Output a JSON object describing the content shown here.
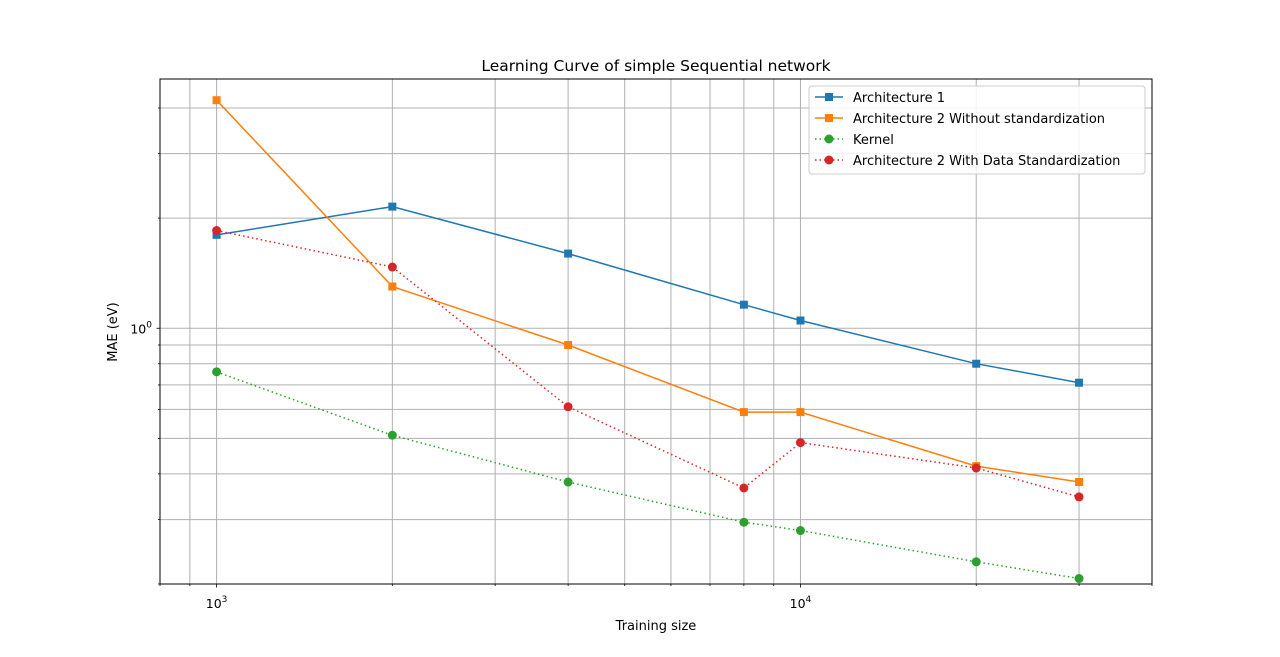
{
  "chart_data": {
    "type": "line",
    "title": "Learning Curve of simple Sequential network",
    "xlabel": "Training size",
    "ylabel": "MAE (eV)",
    "xscale": "log",
    "yscale": "log",
    "xlim": [
      800,
      40000
    ],
    "ylim": [
      0.2,
      4.8
    ],
    "x_ticks": [
      {
        "value": 1000,
        "base": "10",
        "exp": "3"
      },
      {
        "value": 10000,
        "base": "10",
        "exp": "4"
      }
    ],
    "y_ticks": [
      {
        "value": 1,
        "base": "10",
        "exp": "0"
      }
    ],
    "grid": true,
    "legend_position": "top-right",
    "x": [
      1000,
      2000,
      4000,
      8000,
      10000,
      20000,
      30000
    ],
    "series": [
      {
        "name": "Architecture 1",
        "color": "#1f77b4",
        "marker": "square",
        "linestyle": "solid",
        "values": [
          1.8,
          2.15,
          1.6,
          1.16,
          1.05,
          0.8,
          0.71
        ]
      },
      {
        "name": "Architecture 2 Without standardization",
        "color": "#ff7f0e",
        "marker": "square",
        "linestyle": "solid",
        "values": [
          4.2,
          1.3,
          0.9,
          0.59,
          0.59,
          0.42,
          0.38
        ]
      },
      {
        "name": "Kernel",
        "color": "#2ca02c",
        "marker": "circle",
        "linestyle": "dotted",
        "values": [
          0.76,
          0.51,
          0.38,
          0.295,
          0.28,
          0.23,
          0.207
        ]
      },
      {
        "name": "Architecture 2 With Data Standardization",
        "color": "#d62728",
        "marker": "circle",
        "linestyle": "dotted",
        "values": [
          1.85,
          1.47,
          0.61,
          0.366,
          0.487,
          0.415,
          0.346
        ]
      }
    ]
  }
}
